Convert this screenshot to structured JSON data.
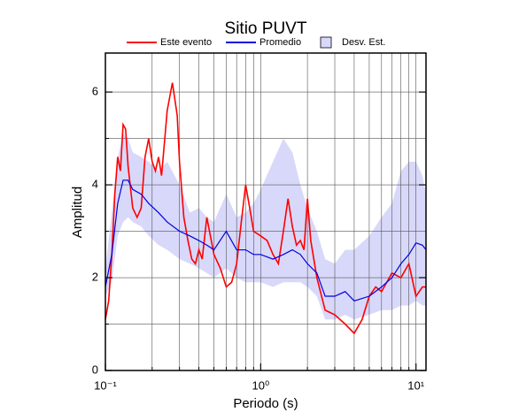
{
  "chart_data": {
    "type": "line",
    "title": "Sitio PUVT",
    "x_label": "Periodo (s)",
    "y_label": "Amplitud",
    "xscale": "log",
    "xlim": [
      0.1,
      11.6
    ],
    "ylim": [
      0,
      6.84
    ],
    "xticks": [
      {
        "value": 0.1,
        "label": "10⁻¹"
      },
      {
        "value": 1,
        "label": "10⁰"
      },
      {
        "value": 10,
        "label": "10¹"
      }
    ],
    "minor_xticks": [
      0.2,
      0.3,
      0.4,
      0.5,
      0.6,
      0.7,
      0.8,
      0.9,
      2,
      3,
      4,
      5,
      6,
      7,
      8,
      9
    ],
    "yticks": [
      0,
      2,
      4,
      6
    ],
    "minor_yticks": [
      1,
      3,
      5
    ],
    "grid": true,
    "legend": "top",
    "series": [
      {
        "name": "Este evento",
        "color": "#ff0000",
        "x": [
          0.1,
          0.105,
          0.11,
          0.115,
          0.12,
          0.125,
          0.13,
          0.135,
          0.14,
          0.15,
          0.16,
          0.17,
          0.18,
          0.19,
          0.2,
          0.21,
          0.22,
          0.23,
          0.25,
          0.27,
          0.29,
          0.3,
          0.32,
          0.34,
          0.36,
          0.38,
          0.4,
          0.42,
          0.45,
          0.5,
          0.55,
          0.6,
          0.65,
          0.7,
          0.75,
          0.8,
          0.85,
          0.9,
          1.0,
          1.1,
          1.2,
          1.3,
          1.4,
          1.5,
          1.6,
          1.7,
          1.8,
          1.9,
          2.0,
          2.1,
          2.3,
          2.6,
          3.0,
          3.5,
          4.0,
          4.5,
          5.0,
          5.5,
          6.0,
          7.0,
          8.0,
          9.0,
          10,
          11,
          11.6
        ],
        "values": [
          1.1,
          1.5,
          2.5,
          3.8,
          4.6,
          4.3,
          5.3,
          5.2,
          4.4,
          3.5,
          3.3,
          3.5,
          4.6,
          5.0,
          4.5,
          4.3,
          4.6,
          4.2,
          5.6,
          6.2,
          5.5,
          4.5,
          3.3,
          2.8,
          2.4,
          2.3,
          2.6,
          2.4,
          3.3,
          2.5,
          2.2,
          1.8,
          1.9,
          2.3,
          3.2,
          4.0,
          3.5,
          3.0,
          2.9,
          2.8,
          2.5,
          2.3,
          3.0,
          3.7,
          3.1,
          2.7,
          2.8,
          2.6,
          3.7,
          2.8,
          2.0,
          1.3,
          1.2,
          1.0,
          0.8,
          1.1,
          1.6,
          1.8,
          1.7,
          2.1,
          2.0,
          2.3,
          1.6,
          1.8,
          1.8
        ]
      },
      {
        "name": "Promedio",
        "color": "#0000dd",
        "x": [
          0.1,
          0.11,
          0.12,
          0.13,
          0.14,
          0.15,
          0.17,
          0.19,
          0.22,
          0.25,
          0.3,
          0.35,
          0.4,
          0.45,
          0.5,
          0.6,
          0.7,
          0.8,
          0.9,
          1.0,
          1.2,
          1.4,
          1.6,
          1.8,
          2.0,
          2.3,
          2.6,
          3.0,
          3.5,
          4.0,
          5,
          6,
          7,
          8,
          9,
          10,
          11,
          11.6
        ],
        "values": [
          1.8,
          2.5,
          3.6,
          4.1,
          4.1,
          3.9,
          3.8,
          3.6,
          3.4,
          3.2,
          3.0,
          2.9,
          2.8,
          2.7,
          2.6,
          3.0,
          2.6,
          2.6,
          2.5,
          2.5,
          2.4,
          2.5,
          2.6,
          2.5,
          2.3,
          2.1,
          1.6,
          1.6,
          1.7,
          1.5,
          1.6,
          1.8,
          2.0,
          2.3,
          2.5,
          2.75,
          2.7,
          2.6
        ]
      },
      {
        "name": "Desv. Est.",
        "color": "#d8d8fa",
        "type": "band",
        "x": [
          0.1,
          0.11,
          0.12,
          0.13,
          0.14,
          0.15,
          0.17,
          0.19,
          0.22,
          0.25,
          0.3,
          0.35,
          0.4,
          0.45,
          0.5,
          0.6,
          0.7,
          0.8,
          0.9,
          1.0,
          1.2,
          1.4,
          1.6,
          1.8,
          2.0,
          2.3,
          2.6,
          3.0,
          3.5,
          4.0,
          5,
          6,
          7,
          8,
          9,
          10,
          11,
          11.6
        ],
        "lower": [
          1.6,
          1.9,
          2.9,
          3.2,
          3.3,
          3.2,
          3.1,
          2.9,
          2.7,
          2.6,
          2.4,
          2.3,
          2.2,
          2.1,
          2.0,
          2.2,
          2.0,
          1.9,
          1.9,
          1.9,
          1.8,
          1.9,
          1.9,
          1.9,
          1.8,
          1.6,
          1.1,
          1.1,
          1.2,
          1.1,
          1.2,
          1.3,
          1.3,
          1.4,
          1.4,
          1.5,
          1.4,
          1.4
        ],
        "upper": [
          2.2,
          3.4,
          4.6,
          5.1,
          5.0,
          4.7,
          4.6,
          4.5,
          4.3,
          4.5,
          4.0,
          3.4,
          3.5,
          3.3,
          3.2,
          3.8,
          3.3,
          3.4,
          3.6,
          3.9,
          4.5,
          5.0,
          4.7,
          4.0,
          3.5,
          3.0,
          2.4,
          2.3,
          2.6,
          2.6,
          2.9,
          3.3,
          3.6,
          4.3,
          4.5,
          4.5,
          4.2,
          3.8
        ]
      }
    ]
  }
}
